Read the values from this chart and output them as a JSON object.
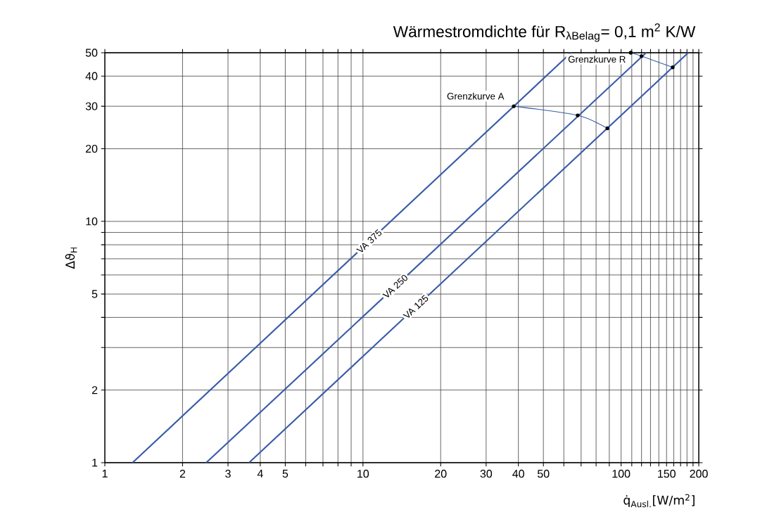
{
  "chart_data": {
    "type": "line",
    "title": "Wärmestromdichte für R$_{λBelag}$= 0,1 m$^{2}$ K/W",
    "xlabel": "q̇$_{Ausl.}$[W/m$^{2}$]",
    "ylabel": "Δϑ$_{H}$",
    "log": "xy",
    "grid": true,
    "xlim": [
      1,
      200
    ],
    "ylim": [
      1,
      50
    ],
    "xticks": [
      1,
      2,
      3,
      4,
      5,
      {
        "value": 6,
        "label": null
      },
      {
        "value": 7,
        "label": null
      },
      {
        "value": 8,
        "label": null
      },
      {
        "value": 9,
        "label": null
      },
      10,
      20,
      30,
      40,
      50,
      {
        "value": 60,
        "label": null
      },
      {
        "value": 70,
        "label": null
      },
      {
        "value": 80,
        "label": null
      },
      {
        "value": 90,
        "label": null
      },
      100,
      {
        "value": 110,
        "label": null
      },
      {
        "value": 120,
        "label": null
      },
      {
        "value": 130,
        "label": null
      },
      {
        "value": 140,
        "label": null
      },
      150,
      {
        "value": 160,
        "label": null
      },
      {
        "value": 170,
        "label": null
      },
      {
        "value": 180,
        "label": null
      },
      {
        "value": 190,
        "label": null
      },
      200
    ],
    "yticks": [
      1,
      2,
      {
        "value": 3,
        "label": null
      },
      {
        "value": 4,
        "label": null
      },
      5,
      {
        "value": 6,
        "label": null
      },
      {
        "value": 7,
        "label": null
      },
      {
        "value": 8,
        "label": null
      },
      {
        "value": 9,
        "label": null
      },
      10,
      20,
      30,
      40,
      50
    ],
    "series": [
      {
        "name": "VA 375",
        "color": "#3a5ba8",
        "x": [
          1.28,
          64
        ],
        "values": [
          1,
          50
        ]
      },
      {
        "name": "VA 250",
        "color": "#3a5ba8",
        "x": [
          2.47,
          125
        ],
        "values": [
          1,
          50
        ]
      },
      {
        "name": "VA 125",
        "color": "#3a5ba8",
        "x": [
          3.62,
          182
        ],
        "values": [
          1,
          50
        ]
      },
      {
        "name": "Grenzkurve A",
        "color": "#3a5ba8",
        "marker": "circle",
        "x": [
          38.4,
          67.9,
          88.5
        ],
        "values": [
          30,
          27.5,
          24.3
        ]
      },
      {
        "name": "Grenzkurve R",
        "color": "#3a5ba8",
        "marker": "circle",
        "x": [
          109,
          120,
          158.5
        ],
        "values": [
          50,
          48.4,
          43.5
        ]
      }
    ]
  }
}
